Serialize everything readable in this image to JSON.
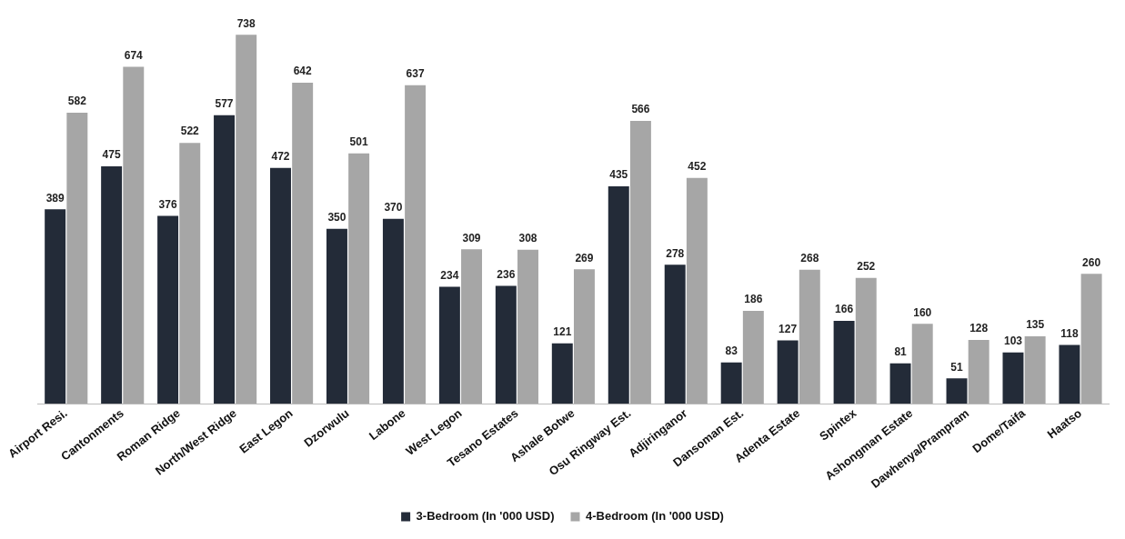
{
  "chart_data": {
    "type": "bar",
    "categories": [
      "Airport Resi.",
      "Cantonments",
      "Roman Ridge",
      "North/West Ridge",
      "East Legon",
      "Dzorwulu",
      "Labone",
      "West Legon",
      "Tesano Estates",
      "Ashale Botwe",
      "Osu Ringway Est.",
      "Adjiringanor",
      "Dansoman Est.",
      "Adenta Estate",
      "Spintex",
      "Ashongman Estate",
      "Dawhenya/Prampram",
      "Dome/Taifa",
      "Haatso"
    ],
    "series": [
      {
        "name": "3-Bedroom (In '000 USD)",
        "color": "#232b38",
        "values": [
          389,
          475,
          376,
          577,
          472,
          350,
          370,
          234,
          236,
          121,
          435,
          278,
          83,
          127,
          166,
          81,
          51,
          103,
          118
        ]
      },
      {
        "name": "4-Bedroom (In '000 USD)",
        "color": "#a6a6a6",
        "values": [
          582,
          674,
          522,
          738,
          642,
          501,
          637,
          309,
          308,
          269,
          566,
          452,
          186,
          268,
          252,
          160,
          128,
          135,
          260
        ]
      }
    ],
    "data_labels": true,
    "legend": "bottom",
    "grid": false
  }
}
